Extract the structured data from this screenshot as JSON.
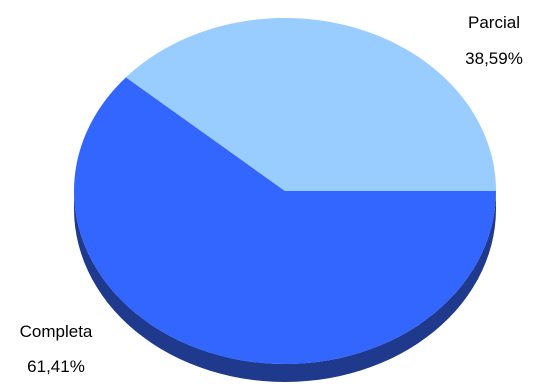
{
  "chart_data": {
    "type": "pie",
    "style": "3d",
    "slices": [
      {
        "label": "Completa",
        "value": 61.41,
        "value_label": "61,41%",
        "color": "#3366ff",
        "side_color": "#1f3a8c"
      },
      {
        "label": "Parcial",
        "value": 38.59,
        "value_label": "38,59%",
        "color": "#99ccff",
        "side_color": "#6f9fd0"
      }
    ]
  }
}
